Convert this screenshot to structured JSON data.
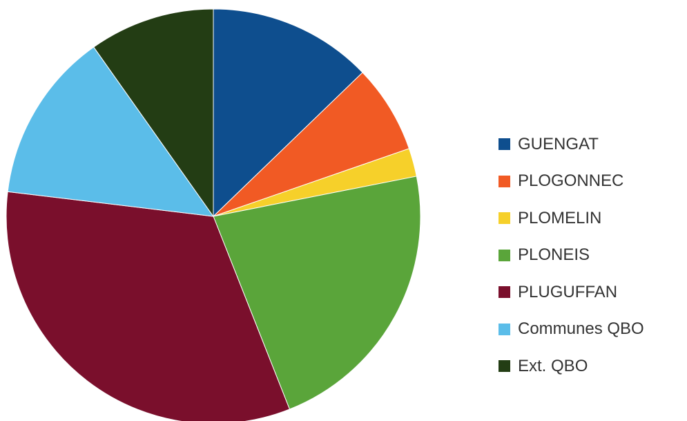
{
  "chart_data": {
    "type": "pie",
    "title": "",
    "start_angle_deg": 0,
    "direction": "clockwise",
    "legend_position": "right",
    "slices": [
      {
        "label": "GUENGAT",
        "value": 12.8,
        "color": "#0e4e8e"
      },
      {
        "label": "PLOGONNEC",
        "value": 6.9,
        "color": "#f15a24"
      },
      {
        "label": "PLOMELIN",
        "value": 2.2,
        "color": "#f6d02a"
      },
      {
        "label": "PLONEIS",
        "value": 22.1,
        "color": "#5aa53a"
      },
      {
        "label": "PLUGUFFAN",
        "value": 32.9,
        "color": "#7a0f2c"
      },
      {
        "label": "Communes QBO",
        "value": 13.3,
        "color": "#5bbde9"
      },
      {
        "label": "Ext. QBO",
        "value": 9.8,
        "color": "#233d14"
      }
    ]
  }
}
